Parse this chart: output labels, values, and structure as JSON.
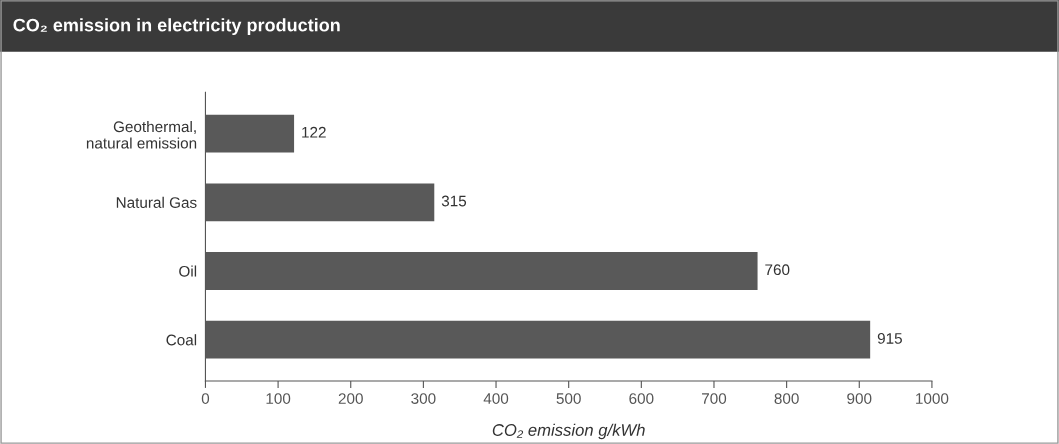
{
  "chart_data": {
    "type": "bar",
    "orientation": "horizontal",
    "title": "CO₂ emission in electricity production",
    "xlabel": "CO₂ emission g/kWh",
    "categories": [
      "Geothermal,\nnatural emission",
      "Natural Gas",
      "Oil",
      "Coal"
    ],
    "values": [
      122,
      315,
      760,
      915
    ],
    "color": "#595959",
    "data_labels": true,
    "xlim": [
      0,
      1000
    ],
    "xticks": [
      0,
      100,
      200,
      300,
      400,
      500,
      600,
      700,
      800,
      900,
      1000
    ],
    "grid": false,
    "legend": false
  }
}
